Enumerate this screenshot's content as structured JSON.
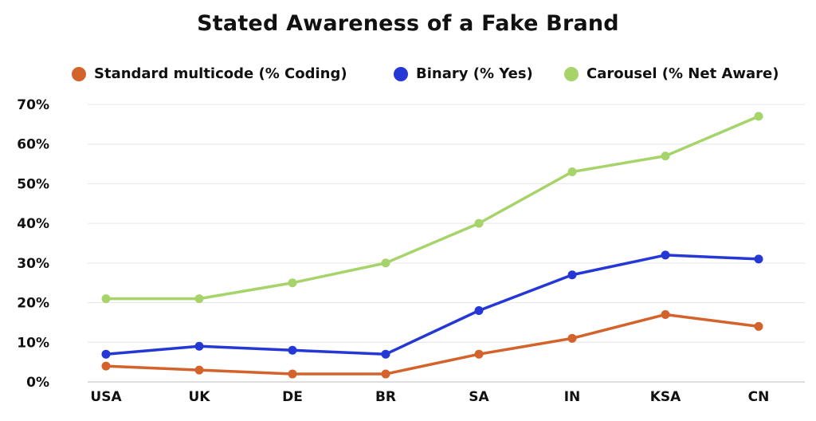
{
  "chart_data": {
    "type": "line",
    "title": "Stated Awareness of a Fake Brand",
    "categories": [
      "USA",
      "UK",
      "DE",
      "BR",
      "SA",
      "IN",
      "KSA",
      "CN"
    ],
    "y_ticks": [
      "0%",
      "10%",
      "20%",
      "30%",
      "40%",
      "50%",
      "60%",
      "70%"
    ],
    "ylim": [
      0,
      70
    ],
    "grid": true,
    "legend_position": "top",
    "series": [
      {
        "name": "Standard multicode (% Coding)",
        "color": "#d4622b",
        "values": [
          4,
          3,
          2,
          2,
          7,
          11,
          17,
          14
        ]
      },
      {
        "name": "Binary (% Yes)",
        "color": "#2538d6",
        "values": [
          7,
          9,
          8,
          7,
          18,
          27,
          32,
          31
        ]
      },
      {
        "name": "Carousel (% Net Aware)",
        "color": "#a6d46b",
        "values": [
          21,
          21,
          25,
          30,
          40,
          53,
          57,
          67
        ]
      }
    ]
  }
}
